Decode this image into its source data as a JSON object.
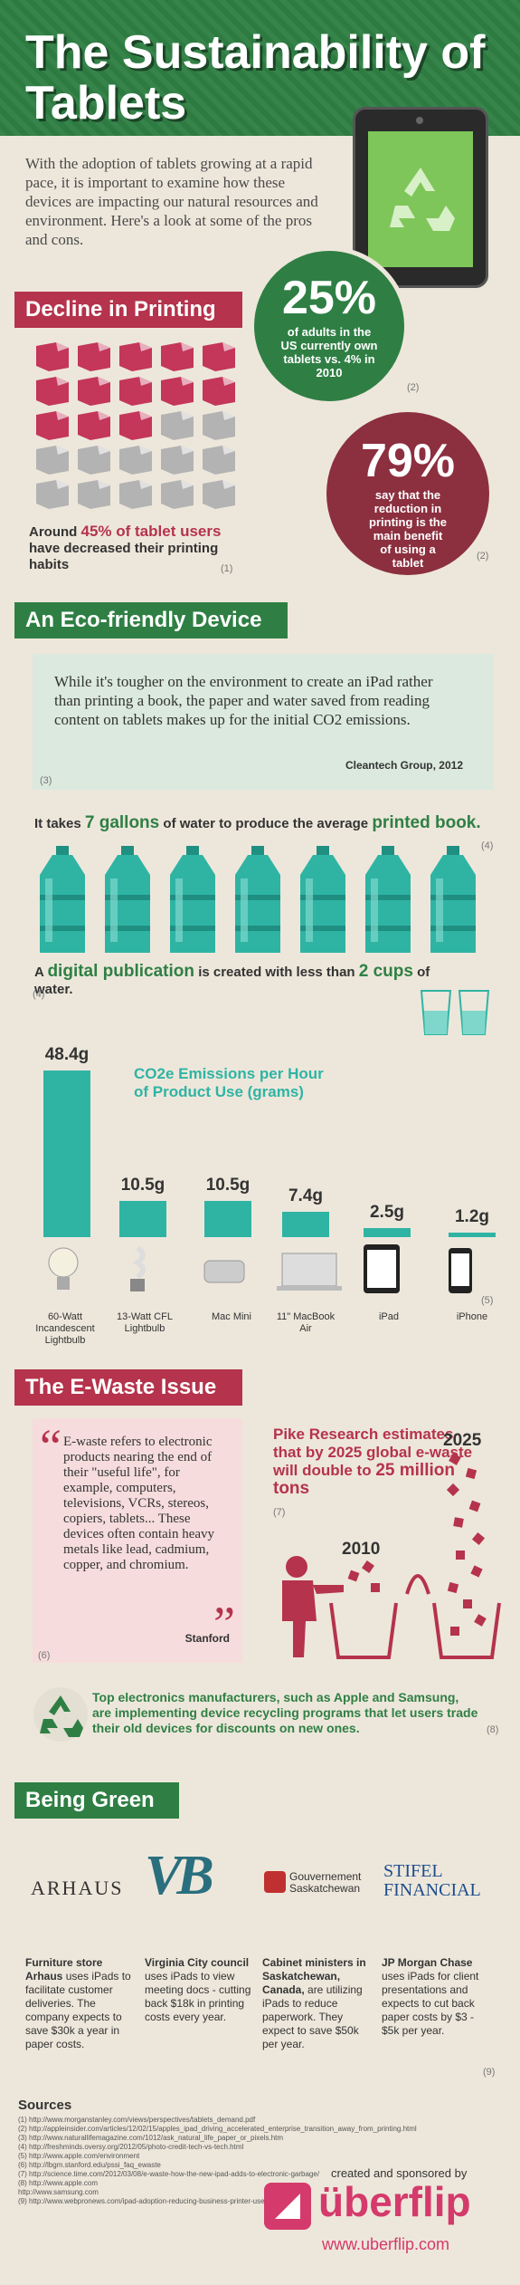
{
  "title": "The Sustainability of Tablets",
  "intro": "With the adoption of tablets growing at a rapid pace, it is important to examine how these devices are impacting our natural resources and environment. Here's a look at some of the pros and cons.",
  "decline": {
    "heading": "Decline in Printing",
    "around_prefix": "Around",
    "around_highlight": "45% of tablet users",
    "around_suffix": "have decreased their printing habits",
    "cite": "(1)"
  },
  "stat25": {
    "value": "25%",
    "text": "of adults in the US currently own tablets vs. 4% in 2010",
    "cite": "(2)"
  },
  "stat79": {
    "value": "79%",
    "text": "say that the reduction in printing is the main benefit of using a tablet",
    "cite": "(2)"
  },
  "eco": {
    "heading": "An Eco-friendly Device",
    "quote": "While it's tougher on the environment to create an iPad rather than printing a book, the paper and water saved from reading content on tablets makes up for the initial CO2 emissions.",
    "attribution": "Cleantech Group, 2012",
    "cite": "(3)"
  },
  "water": {
    "line1_a": "It takes",
    "line1_b": "7 gallons",
    "line1_c": "of water to produce the average",
    "line1_d": "printed book.",
    "cite1": "(4)",
    "line2_a": "A",
    "line2_b": "digital publication",
    "line2_c": "is created with less than",
    "line2_d": "2 cups",
    "line2_e": "of water.",
    "cite2": "(4)"
  },
  "chart_data": {
    "type": "bar",
    "title": "CO2e Emissions per Hour of Product Use (grams)",
    "categories": [
      "60-Watt Incandescent Lightbulb",
      "13-Watt CFL Lightbulb",
      "Mac Mini",
      "11\" MacBook Air",
      "iPad",
      "iPhone"
    ],
    "values": [
      48.4,
      10.5,
      10.5,
      7.4,
      2.5,
      1.2
    ],
    "labels": [
      "48.4g",
      "10.5g",
      "10.5g",
      "7.4g",
      "2.5g",
      "1.2g"
    ],
    "cite": "(5)"
  },
  "ewaste": {
    "heading": "The E-Waste Issue",
    "quote": "E-waste refers to electronic products nearing the end of their \"useful life\", for example, computers, televisions, VCRs, stereos, copiers, tablets... These devices often contain heavy metals like lead, cadmium, copper, and chromium.",
    "attribution": "Stanford",
    "cite": "(6)",
    "pike": "Pike Research estimates that by 2025 global e-waste will double to",
    "pike_highlight": "25 million tons",
    "pike_cite": "(7)",
    "year_a": "2010",
    "year_b": "2025",
    "recycle": "Top electronics manufacturers, such as Apple and Samsung, are implementing device recycling programs that let users trade their old devices for discounts on new ones.",
    "recycle_cite": "(8)"
  },
  "green": {
    "heading": "Being Green",
    "logos": [
      "ARHAUS",
      "VB",
      "Gouvernement Saskatchewan",
      "STIFEL FINANCIAL"
    ],
    "items": [
      {
        "bold": "Furniture store Arhaus",
        "text": "uses iPads to facilitate customer deliveries. The company expects to save $30k a year in paper costs."
      },
      {
        "bold": "Virginia City council",
        "text": "uses iPads to view meeting docs - cutting back $18k in printing costs every year."
      },
      {
        "bold": "Cabinet ministers in Saskatchewan, Canada,",
        "text": "are utilizing iPads to reduce paperwork. They expect to save $50k per year."
      },
      {
        "bold": "JP Morgan Chase",
        "text": "uses iPads for client presentations and expects to cut back paper costs by $3 - $5k per year."
      }
    ],
    "cite": "(9)"
  },
  "sources": {
    "heading": "Sources",
    "list": [
      "(1) http://www.morganstanley.com/views/perspectives/tablets_demand.pdf",
      "(2) http://appleinsider.com/articles/12/02/15/apples_ipad_driving_accelerated_enterprise_transition_away_from_printing.html",
      "(3) http://www.naturallifemagazine.com/1012/ask_natural_life_paper_or_pixels.htm",
      "(4) http://freshminds.oversy.org/2012/05/photo-credit-tech-vs-tech.html",
      "(5) http://www.apple.com/environment",
      "(6) http://lbgm.stanford.edu/pssi_faq_ewaste",
      "(7) http://science.time.com/2012/03/08/e-waste-how-the-new-ipad-adds-to-electronic-garbage/",
      "(8) http://www.apple.com",
      "    http://www.samsung.com",
      "(9) http://www.webpronews.com/ipad-adoption-reducing-business-printer-use-2012-02"
    ]
  },
  "sponsor": {
    "label": "created and sponsored by",
    "brand": "überflip",
    "url": "www.uberflip.com"
  },
  "colors": {
    "green": "#2f7f44",
    "red": "#b5334c",
    "teal": "#2fb4a4"
  }
}
